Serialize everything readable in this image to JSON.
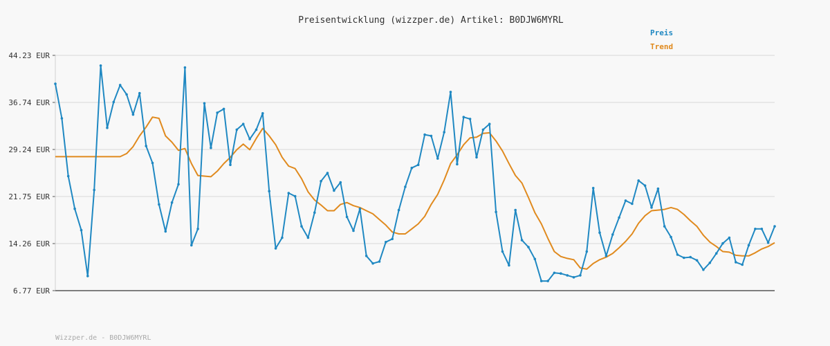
{
  "chart_data": {
    "type": "line",
    "title": "Preisentwicklung (wizzper.de) Artikel: B0DJW6MYRL",
    "xlabel": "",
    "ylabel": "",
    "y_ticks": [
      "44.23 EUR",
      "36.74 EUR",
      "29.24 EUR",
      "21.75 EUR",
      "14.26 EUR",
      "6.77 EUR"
    ],
    "ylim": [
      6.77,
      44.23
    ],
    "grid": true,
    "legend_position": "top-right",
    "series": [
      {
        "name": "Preis",
        "color": "#1f88c2",
        "values": [
          39.7,
          34.2,
          25.0,
          19.8,
          16.4,
          9.1,
          22.8,
          42.6,
          32.7,
          36.8,
          39.5,
          38.0,
          34.8,
          38.2,
          29.8,
          27.1,
          20.5,
          16.2,
          20.8,
          23.7,
          42.3,
          14.0,
          16.6,
          36.6,
          29.5,
          35.1,
          35.7,
          26.8,
          32.4,
          33.3,
          30.9,
          32.4,
          35.0,
          22.6,
          13.5,
          15.2,
          22.3,
          21.8,
          17.0,
          15.2,
          19.2,
          24.2,
          25.5,
          22.7,
          24.0,
          18.5,
          16.3,
          19.8,
          12.3,
          11.1,
          11.4,
          14.5,
          15.0,
          19.6,
          23.3,
          26.3,
          26.8,
          31.6,
          31.4,
          27.8,
          32.0,
          38.4,
          26.9,
          34.4,
          34.1,
          28.0,
          32.4,
          33.3,
          19.3,
          13.0,
          10.8,
          19.6,
          14.8,
          13.7,
          11.8,
          8.3,
          8.3,
          9.6,
          9.5,
          9.2,
          8.9,
          9.2,
          13.0,
          23.1,
          16.0,
          12.3,
          15.7,
          18.4,
          21.1,
          20.6,
          24.3,
          23.5,
          20.0,
          23.0,
          17.0,
          15.3,
          12.5,
          12.0,
          12.1,
          11.6,
          10.1,
          11.2,
          12.7,
          14.3,
          15.2,
          11.3,
          10.9,
          14.0,
          16.6,
          16.6,
          14.4,
          17.0
        ]
      },
      {
        "name": "Trend",
        "color": "#e08a1e",
        "values": [
          28.1,
          28.1,
          28.1,
          28.1,
          28.1,
          28.1,
          28.1,
          28.1,
          28.1,
          28.1,
          28.1,
          28.6,
          29.7,
          31.4,
          32.8,
          34.4,
          34.2,
          31.4,
          30.4,
          29.1,
          29.4,
          27.0,
          25.1,
          25.0,
          24.9,
          25.8,
          27.0,
          28.0,
          29.2,
          30.1,
          29.2,
          31.0,
          32.6,
          31.4,
          30.0,
          28.0,
          26.6,
          26.2,
          24.6,
          22.5,
          21.2,
          20.4,
          19.5,
          19.5,
          20.5,
          20.8,
          20.3,
          20.0,
          19.5,
          19.0,
          18.1,
          17.2,
          16.1,
          15.8,
          15.8,
          16.6,
          17.4,
          18.6,
          20.5,
          22.1,
          24.4,
          27.0,
          28.4,
          30.0,
          31.1,
          31.2,
          31.8,
          31.9,
          30.6,
          29.0,
          27.0,
          25.1,
          23.9,
          21.6,
          19.2,
          17.4,
          15.1,
          13.0,
          12.2,
          11.9,
          11.7,
          10.4,
          10.2,
          11.1,
          11.7,
          12.1,
          12.7,
          13.6,
          14.6,
          15.8,
          17.5,
          18.7,
          19.5,
          19.6,
          19.7,
          20.0,
          19.7,
          18.9,
          17.9,
          17.0,
          15.6,
          14.5,
          13.8,
          13.0,
          12.9,
          12.4,
          12.3,
          12.3,
          12.8,
          13.4,
          13.8,
          14.4
        ]
      }
    ]
  },
  "footer": {
    "text": "Wizzper.de - B0DJW6MYRL"
  }
}
